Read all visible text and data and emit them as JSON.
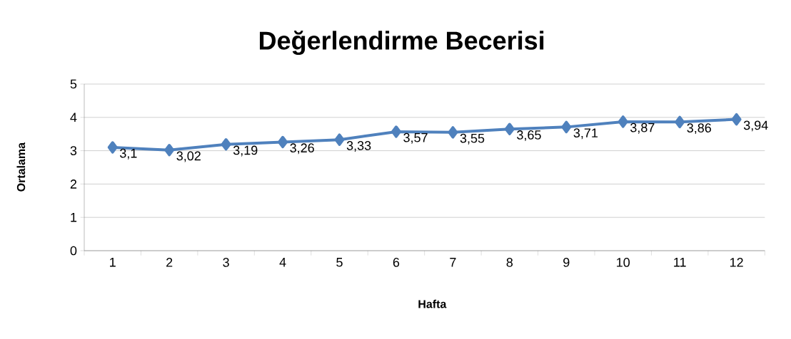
{
  "chart_data": {
    "type": "line",
    "title": "Değerlendirme Becerisi",
    "xlabel": "Hafta",
    "ylabel": "Ortalama",
    "categories": [
      "1",
      "2",
      "3",
      "4",
      "5",
      "6",
      "7",
      "8",
      "9",
      "10",
      "11",
      "12"
    ],
    "series": [
      {
        "color": "#4f81bd",
        "values": [
          3.1,
          3.02,
          3.19,
          3.26,
          3.33,
          3.57,
          3.55,
          3.65,
          3.71,
          3.87,
          3.86,
          3.94
        ],
        "value_labels": [
          "3,1",
          "3,02",
          "3,19",
          "3,26",
          "3,33",
          "3,57",
          "3,55",
          "3,65",
          "3,71",
          "3,87",
          "3,86",
          "3,94"
        ]
      }
    ],
    "ylim": [
      0,
      5
    ],
    "yticks": [
      0,
      1,
      2,
      3,
      4,
      5
    ],
    "grid": "y",
    "marker": "diamond",
    "line_style": "solid"
  }
}
